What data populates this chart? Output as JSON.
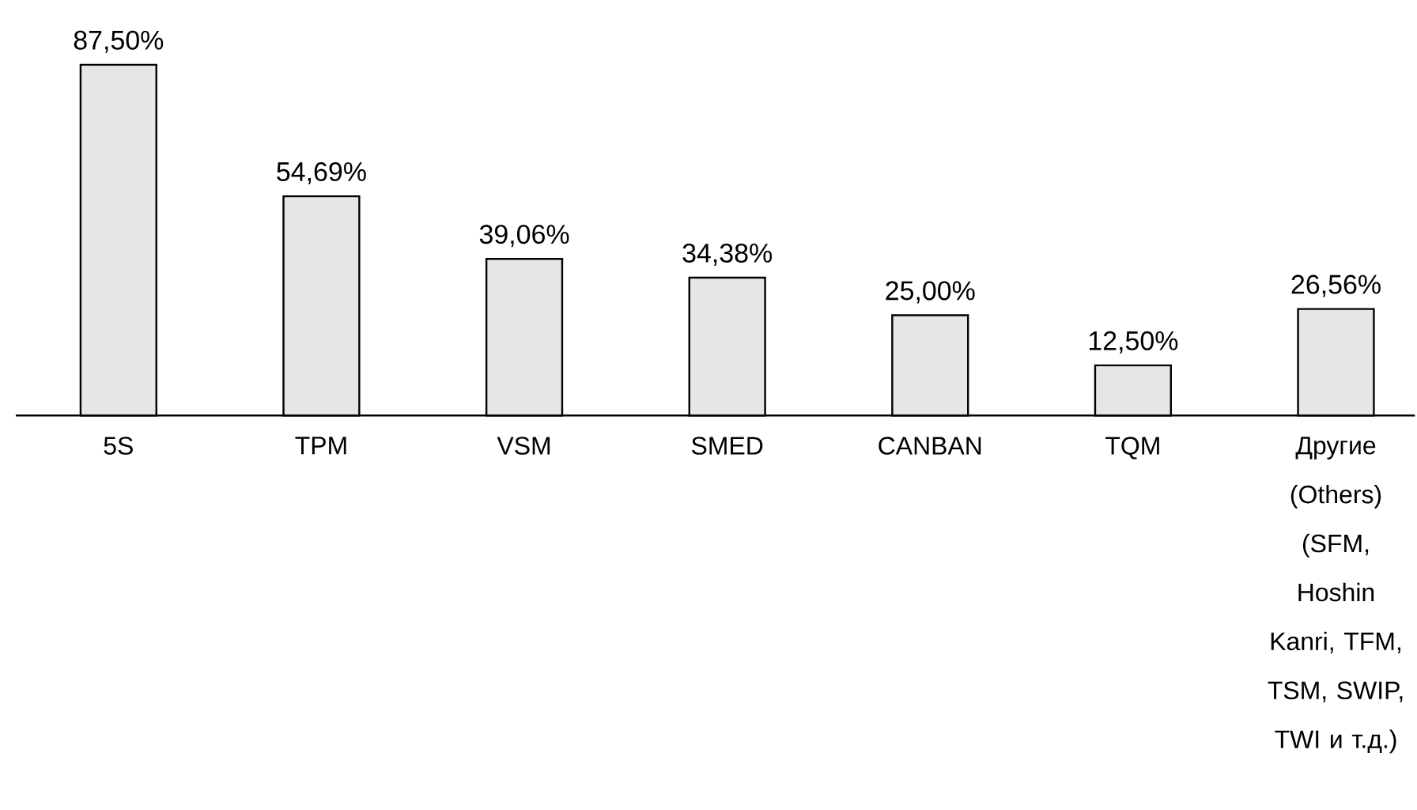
{
  "chart_data": {
    "type": "bar",
    "categories": [
      "5S",
      "TPM",
      "VSM",
      "SMED",
      "CANBAN",
      "TQM",
      "Другие (Others) (SFM, Hoshin Kanri, TFM, TSM, SWIP, TWI и т.д.)"
    ],
    "values": [
      87.5,
      54.69,
      39.06,
      34.38,
      25.0,
      12.5,
      26.56
    ],
    "value_labels": [
      "87,50%",
      "54,69%",
      "39,06%",
      "34,38%",
      "25,00%",
      "12,50%",
      "26,56%"
    ],
    "color": "#e6e6e6"
  }
}
